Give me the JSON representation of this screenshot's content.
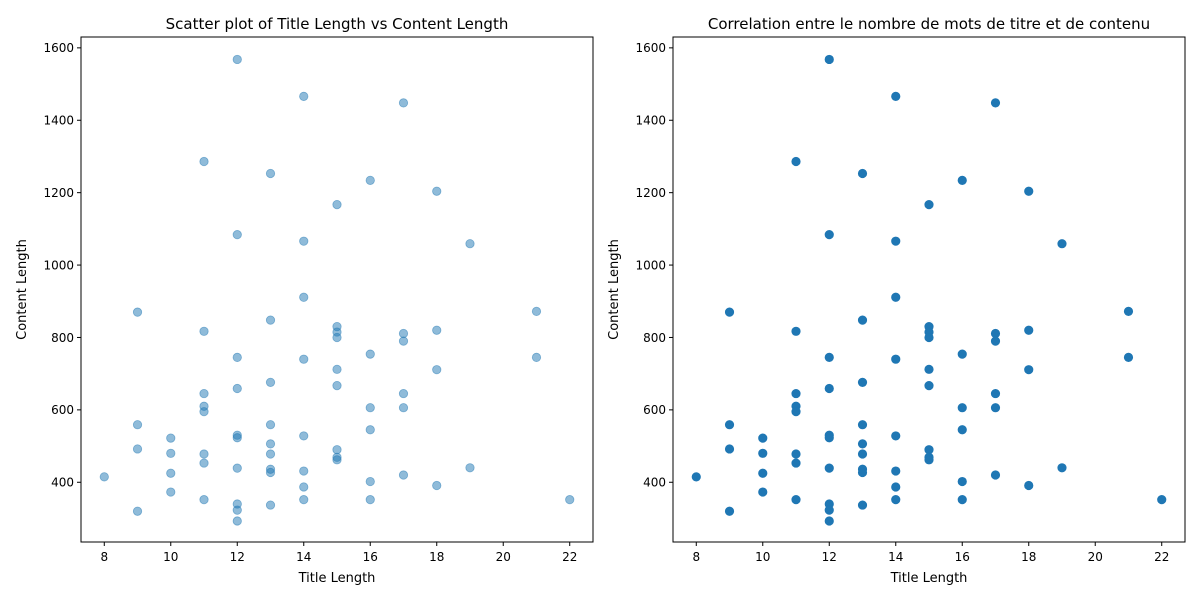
{
  "chart_data": [
    {
      "type": "scatter",
      "title": "Scatter plot of Title Length vs Content Length",
      "xlabel": "Title Length",
      "ylabel": "Content Length",
      "xlim": [
        7.3,
        22.7
      ],
      "ylim": [
        235,
        1630
      ],
      "xticks": [
        8,
        10,
        12,
        14,
        16,
        18,
        20,
        22
      ],
      "yticks": [
        400,
        600,
        800,
        1000,
        1200,
        1400,
        1600
      ],
      "grid": false,
      "marker_color": "#1f77b4",
      "marker_alpha": 0.5,
      "x": [
        12,
        14,
        17,
        11,
        13,
        16,
        18,
        15,
        12,
        14,
        19,
        14,
        9,
        21,
        13,
        15,
        15,
        15,
        11,
        17,
        17,
        18,
        16,
        12,
        14,
        21,
        15,
        18,
        13,
        15,
        11,
        17,
        12,
        11,
        11,
        16,
        17,
        9,
        13,
        16,
        12,
        12,
        14,
        10,
        13,
        9,
        15,
        10,
        11,
        13,
        15,
        15,
        11,
        12,
        13,
        14,
        13,
        10,
        17,
        19,
        8,
        16,
        14,
        18,
        10,
        11,
        14,
        16,
        22,
        12,
        13,
        12,
        9,
        12
      ],
      "y": [
        1568,
        1466,
        1448,
        1286,
        1253,
        1234,
        1204,
        1167,
        1084,
        1066,
        1059,
        911,
        870,
        872,
        848,
        830,
        815,
        800,
        817,
        811,
        790,
        820,
        754,
        745,
        740,
        745,
        712,
        711,
        676,
        667,
        645,
        645,
        659,
        610,
        595,
        606,
        606,
        559,
        559,
        545,
        530,
        523,
        528,
        522,
        506,
        492,
        490,
        480,
        478,
        478,
        469,
        462,
        453,
        439,
        436,
        431,
        427,
        425,
        420,
        440,
        415,
        402,
        387,
        391,
        373,
        352,
        352,
        352,
        352,
        340,
        337,
        323,
        320,
        293
      ]
    },
    {
      "type": "scatter",
      "title": "Correlation entre le nombre de mots de titre et de contenu",
      "xlabel": "Title Length",
      "ylabel": "Content Length",
      "xlim": [
        7.3,
        22.7
      ],
      "ylim": [
        235,
        1630
      ],
      "xticks": [
        8,
        10,
        12,
        14,
        16,
        18,
        20,
        22
      ],
      "yticks": [
        400,
        600,
        800,
        1000,
        1200,
        1400,
        1600
      ],
      "grid": false,
      "marker_color": "#1f77b4",
      "marker_alpha": 1,
      "x": [
        12,
        14,
        17,
        11,
        13,
        16,
        18,
        15,
        12,
        14,
        19,
        14,
        9,
        21,
        13,
        15,
        15,
        15,
        11,
        17,
        17,
        18,
        16,
        12,
        14,
        21,
        15,
        18,
        13,
        15,
        11,
        17,
        12,
        11,
        11,
        16,
        17,
        9,
        13,
        16,
        12,
        12,
        14,
        10,
        13,
        9,
        15,
        10,
        11,
        13,
        15,
        15,
        11,
        12,
        13,
        14,
        13,
        10,
        17,
        19,
        8,
        16,
        14,
        18,
        10,
        11,
        14,
        16,
        22,
        12,
        13,
        12,
        9,
        12
      ],
      "y": [
        1568,
        1466,
        1448,
        1286,
        1253,
        1234,
        1204,
        1167,
        1084,
        1066,
        1059,
        911,
        870,
        872,
        848,
        830,
        815,
        800,
        817,
        811,
        790,
        820,
        754,
        745,
        740,
        745,
        712,
        711,
        676,
        667,
        645,
        645,
        659,
        610,
        595,
        606,
        606,
        559,
        559,
        545,
        530,
        523,
        528,
        522,
        506,
        492,
        490,
        480,
        478,
        478,
        469,
        462,
        453,
        439,
        436,
        431,
        427,
        425,
        420,
        440,
        415,
        402,
        387,
        391,
        373,
        352,
        352,
        352,
        352,
        340,
        337,
        323,
        320,
        293
      ]
    }
  ]
}
